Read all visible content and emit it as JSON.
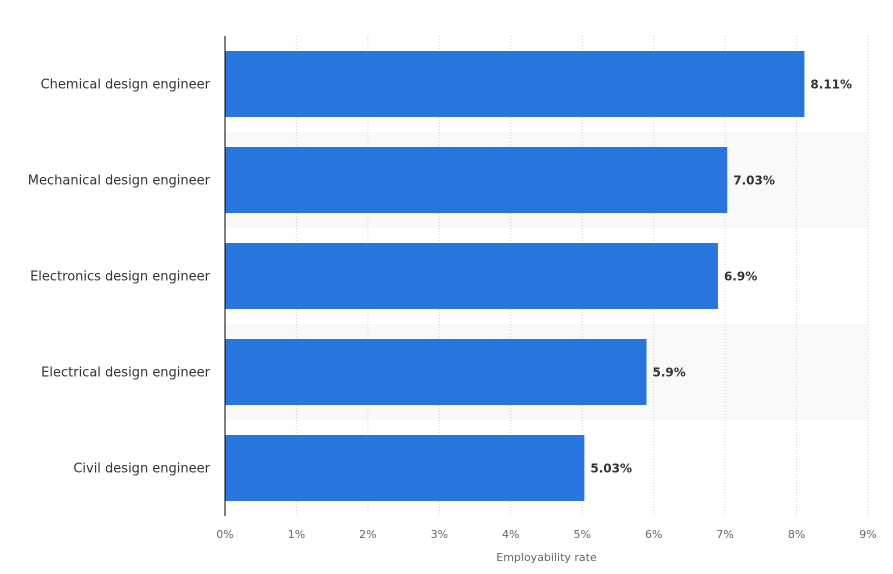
{
  "chart_data": {
    "type": "bar",
    "orientation": "horizontal",
    "categories": [
      "Chemical design engineer",
      "Mechanical design engineer",
      "Electronics design engineer",
      "Electrical design engineer",
      "Civil design engineer"
    ],
    "values": [
      8.11,
      7.03,
      6.9,
      5.9,
      5.03
    ],
    "value_labels": [
      "8.11%",
      "7.03%",
      "6.9%",
      "5.9%",
      "5.03%"
    ],
    "xlabel": "Employability rate",
    "ylabel": "",
    "xlim": [
      0,
      9
    ],
    "x_ticks": [
      "0%",
      "1%",
      "2%",
      "3%",
      "4%",
      "5%",
      "6%",
      "7%",
      "8%",
      "9%"
    ],
    "grid": "vertical dotted",
    "colors": {
      "bar": "#2876dd",
      "band": "#f9f9f9",
      "grid": "#cfcfcf",
      "axis": "#000000"
    }
  }
}
